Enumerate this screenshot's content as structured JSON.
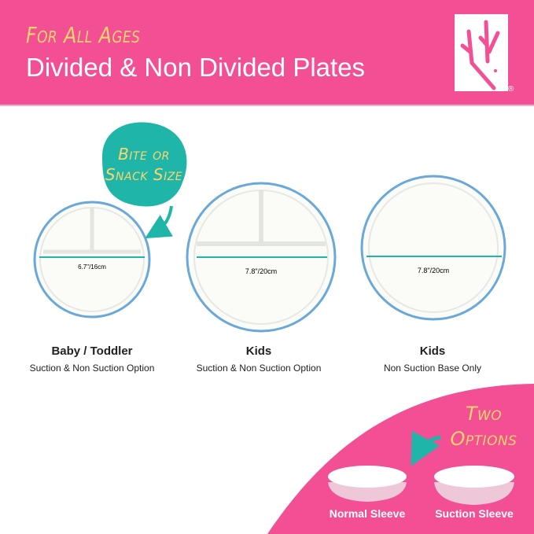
{
  "header": {
    "tagline": "For All Ages",
    "title": "Divided & Non Divided Plates",
    "logo_mark": "®"
  },
  "badge": {
    "line1": "Bite or",
    "line2": "Snack Size"
  },
  "plates": [
    {
      "name": "Baby / Toddler",
      "option": "Suction & Non Suction Option",
      "size": "6.7\"/16cm",
      "divided": true
    },
    {
      "name": "Kids",
      "option": "Suction & Non Suction Option",
      "size": "7.8\"/20cm",
      "divided": true
    },
    {
      "name": "Kids",
      "option": "Non Suction Base Only",
      "size": "7.8\"/20cm",
      "divided": false
    }
  ],
  "options": {
    "line1": "Two",
    "line2": "Options",
    "sleeves": [
      "Normal Sleeve",
      "Suction Sleeve"
    ]
  },
  "colors": {
    "pink": "#f24f95",
    "teal": "#1fb5a8",
    "yellow": "#ffd56b",
    "rim": "#5b9bd5"
  }
}
